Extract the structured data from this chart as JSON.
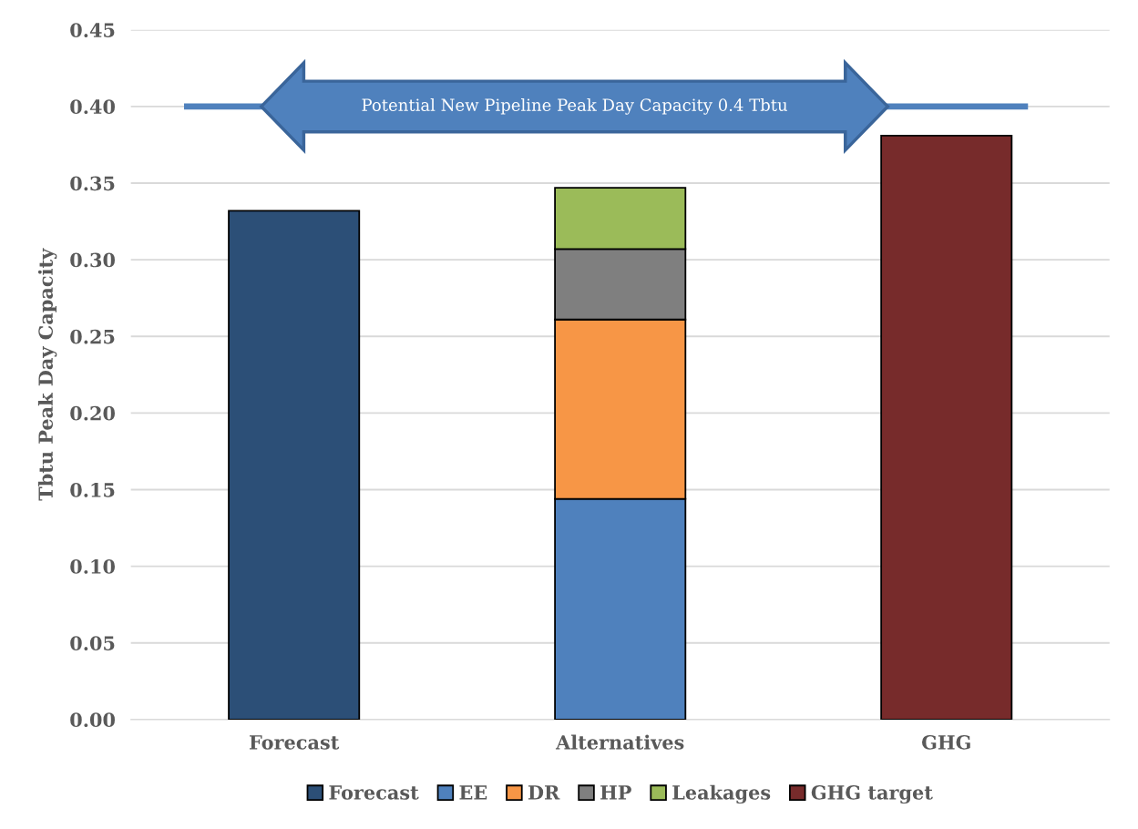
{
  "chart_data": {
    "type": "bar",
    "stacked": true,
    "ylabel": "Tbtu Peak Day Capacity",
    "categories": [
      "Forecast",
      "Alternatives",
      "GHG"
    ],
    "series": [
      {
        "name": "Forecast",
        "color": "#2c4f77",
        "values": [
          0.332,
          null,
          null
        ]
      },
      {
        "name": "EE",
        "color": "#4f81bd",
        "values": [
          null,
          0.144,
          null
        ]
      },
      {
        "name": "DR",
        "color": "#f79646",
        "values": [
          null,
          0.117,
          null
        ]
      },
      {
        "name": "HP",
        "color": "#7f7f7f",
        "values": [
          null,
          0.046,
          null
        ]
      },
      {
        "name": "Leakages",
        "color": "#9bbb59",
        "values": [
          null,
          0.04,
          null
        ]
      },
      {
        "name": "GHG target",
        "color": "#772b2b",
        "values": [
          null,
          null,
          0.381
        ]
      }
    ],
    "ylim": [
      0,
      0.45
    ],
    "yticks": [
      {
        "value": 0,
        "label": "0.00"
      },
      {
        "value": 0.05,
        "label": "0.05"
      },
      {
        "value": 0.1,
        "label": "0.10"
      },
      {
        "value": 0.15,
        "label": "0.15"
      },
      {
        "value": 0.2,
        "label": "0.20"
      },
      {
        "value": 0.25,
        "label": "0.25"
      },
      {
        "value": 0.3,
        "label": "0.30"
      },
      {
        "value": 0.35,
        "label": "0.35"
      },
      {
        "value": 0.4,
        "label": "0.40"
      },
      {
        "value": 0.45,
        "label": "0.45"
      }
    ],
    "ref_lines": [
      {
        "axis": "y",
        "value": 0.4,
        "label": "Potential New Pipeline Peak Day Capacity 0.4 Tbtu",
        "color": "#4f81bd"
      }
    ],
    "grid": "y",
    "legend": "bottom"
  }
}
